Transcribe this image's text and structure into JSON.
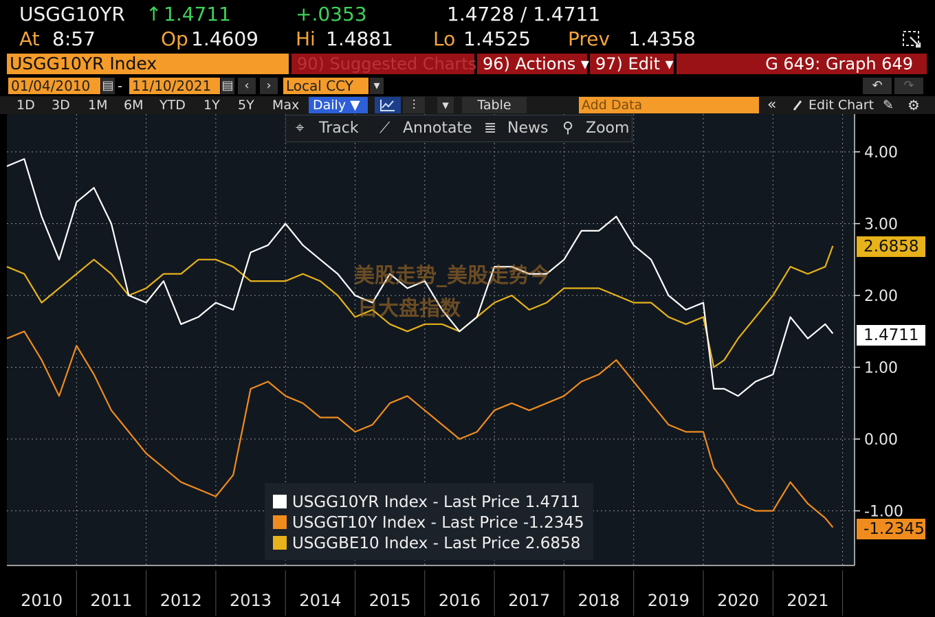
{
  "quote": {
    "ticker": "USGG10YR",
    "arrow": "↑",
    "last": "1.4711",
    "change": "+.0353",
    "bid_ask": "1.4728 / 1.4711",
    "at_label": "At",
    "time": "8:57",
    "op_label": "Op",
    "open": "1.4609",
    "hi_label": "Hi",
    "high": "1.4881",
    "lo_label": "Lo",
    "low": "1.4525",
    "prev_label": "Prev",
    "prev": "1.4358"
  },
  "toolbar": {
    "security": "USGG10YR Index",
    "suggested": "90) Suggested Charts",
    "actions": "96) Actions ▾",
    "edit": "97) Edit ▾",
    "graph_title": "G 649: Graph 649",
    "start_date": "01/04/2010",
    "end_date": "11/10/2021",
    "date_sep": "-",
    "currency": "Local CCY",
    "ranges": [
      "1D",
      "3D",
      "1M",
      "6M",
      "YTD",
      "1Y",
      "5Y",
      "Max"
    ],
    "period": "Daily ▼",
    "table": "Table",
    "add_data_placeholder": "Add Data",
    "edit_chart": "Edit Chart"
  },
  "overlay_menu": {
    "track": "Track",
    "annotate": "Annotate",
    "news": "News",
    "zoom": "Zoom"
  },
  "watermark": {
    "line1": "美股走势_美股走势今",
    "line2": "日大盘指数"
  },
  "colors": {
    "white_series": "#ffffff",
    "orange_series": "#f08c1e",
    "yellow_series": "#e7b21a",
    "accent": "#f49b2a",
    "red": "#9a1216"
  },
  "chart_data": {
    "type": "line",
    "x_ticks": [
      "2010",
      "2011",
      "2012",
      "2013",
      "2014",
      "2015",
      "2016",
      "2017",
      "2018",
      "2019",
      "2020",
      "2021"
    ],
    "y_ticks": [
      "4.00",
      "3.00",
      "2.00",
      "1.00",
      "0.00",
      "-1.00"
    ],
    "ylim": [
      -1.5,
      4.5
    ],
    "grid": true,
    "legend_position": "bottom-center",
    "series": [
      {
        "name": "USGG10YR Index",
        "last_label": "Last Price",
        "last": "1.4711",
        "color": "#ffffff",
        "x": [
          2010.0,
          2010.25,
          2010.5,
          2010.75,
          2011.0,
          2011.25,
          2011.5,
          2011.75,
          2012.0,
          2012.25,
          2012.5,
          2012.75,
          2013.0,
          2013.25,
          2013.5,
          2013.75,
          2014.0,
          2014.25,
          2014.5,
          2014.75,
          2015.0,
          2015.25,
          2015.5,
          2015.75,
          2016.0,
          2016.25,
          2016.5,
          2016.75,
          2017.0,
          2017.25,
          2017.5,
          2017.75,
          2018.0,
          2018.25,
          2018.5,
          2018.75,
          2019.0,
          2019.25,
          2019.5,
          2019.75,
          2020.0,
          2020.15,
          2020.3,
          2020.5,
          2020.75,
          2021.0,
          2021.25,
          2021.5,
          2021.75,
          2021.86
        ],
        "y": [
          3.8,
          3.9,
          3.1,
          2.5,
          3.3,
          3.5,
          3.0,
          2.0,
          1.9,
          2.2,
          1.6,
          1.7,
          1.9,
          1.8,
          2.6,
          2.7,
          3.0,
          2.7,
          2.5,
          2.3,
          2.0,
          1.9,
          2.3,
          2.1,
          2.2,
          1.8,
          1.5,
          1.7,
          2.4,
          2.4,
          2.3,
          2.3,
          2.5,
          2.9,
          2.9,
          3.1,
          2.7,
          2.5,
          2.0,
          1.8,
          1.9,
          0.7,
          0.7,
          0.6,
          0.8,
          0.9,
          1.7,
          1.4,
          1.6,
          1.47
        ]
      },
      {
        "name": "USGGT10Y Index",
        "last_label": "Last Price",
        "last": "-1.2345",
        "color": "#f08c1e",
        "x": [
          2010.0,
          2010.25,
          2010.5,
          2010.75,
          2011.0,
          2011.25,
          2011.5,
          2011.75,
          2012.0,
          2012.25,
          2012.5,
          2012.75,
          2013.0,
          2013.25,
          2013.5,
          2013.75,
          2014.0,
          2014.25,
          2014.5,
          2014.75,
          2015.0,
          2015.25,
          2015.5,
          2015.75,
          2016.0,
          2016.25,
          2016.5,
          2016.75,
          2017.0,
          2017.25,
          2017.5,
          2017.75,
          2018.0,
          2018.25,
          2018.5,
          2018.75,
          2019.0,
          2019.25,
          2019.5,
          2019.75,
          2020.0,
          2020.15,
          2020.3,
          2020.5,
          2020.75,
          2021.0,
          2021.25,
          2021.5,
          2021.75,
          2021.86
        ],
        "y": [
          1.4,
          1.5,
          1.1,
          0.6,
          1.3,
          0.9,
          0.4,
          0.1,
          -0.2,
          -0.4,
          -0.6,
          -0.7,
          -0.8,
          -0.5,
          0.7,
          0.8,
          0.6,
          0.5,
          0.3,
          0.3,
          0.1,
          0.2,
          0.5,
          0.6,
          0.4,
          0.2,
          0.0,
          0.1,
          0.4,
          0.5,
          0.4,
          0.5,
          0.6,
          0.8,
          0.9,
          1.1,
          0.8,
          0.5,
          0.2,
          0.1,
          0.1,
          -0.4,
          -0.6,
          -0.9,
          -1.0,
          -1.0,
          -0.6,
          -0.9,
          -1.1,
          -1.23
        ]
      },
      {
        "name": "USGGBE10 Index",
        "last_label": "Last Price",
        "last": "2.6858",
        "color": "#e7b21a",
        "x": [
          2010.0,
          2010.25,
          2010.5,
          2010.75,
          2011.0,
          2011.25,
          2011.5,
          2011.75,
          2012.0,
          2012.25,
          2012.5,
          2012.75,
          2013.0,
          2013.25,
          2013.5,
          2013.75,
          2014.0,
          2014.25,
          2014.5,
          2014.75,
          2015.0,
          2015.25,
          2015.5,
          2015.75,
          2016.0,
          2016.25,
          2016.5,
          2016.75,
          2017.0,
          2017.25,
          2017.5,
          2017.75,
          2018.0,
          2018.25,
          2018.5,
          2018.75,
          2019.0,
          2019.25,
          2019.5,
          2019.75,
          2020.0,
          2020.15,
          2020.3,
          2020.5,
          2020.75,
          2021.0,
          2021.25,
          2021.5,
          2021.75,
          2021.86
        ],
        "y": [
          2.4,
          2.3,
          1.9,
          2.1,
          2.3,
          2.5,
          2.3,
          2.0,
          2.1,
          2.3,
          2.3,
          2.5,
          2.5,
          2.4,
          2.2,
          2.2,
          2.2,
          2.3,
          2.2,
          2.0,
          1.7,
          1.8,
          1.6,
          1.5,
          1.6,
          1.6,
          1.5,
          1.7,
          1.9,
          2.0,
          1.8,
          1.9,
          2.1,
          2.1,
          2.1,
          2.0,
          1.9,
          1.9,
          1.7,
          1.6,
          1.7,
          1.0,
          1.1,
          1.4,
          1.7,
          2.0,
          2.4,
          2.3,
          2.4,
          2.69
        ]
      }
    ]
  }
}
